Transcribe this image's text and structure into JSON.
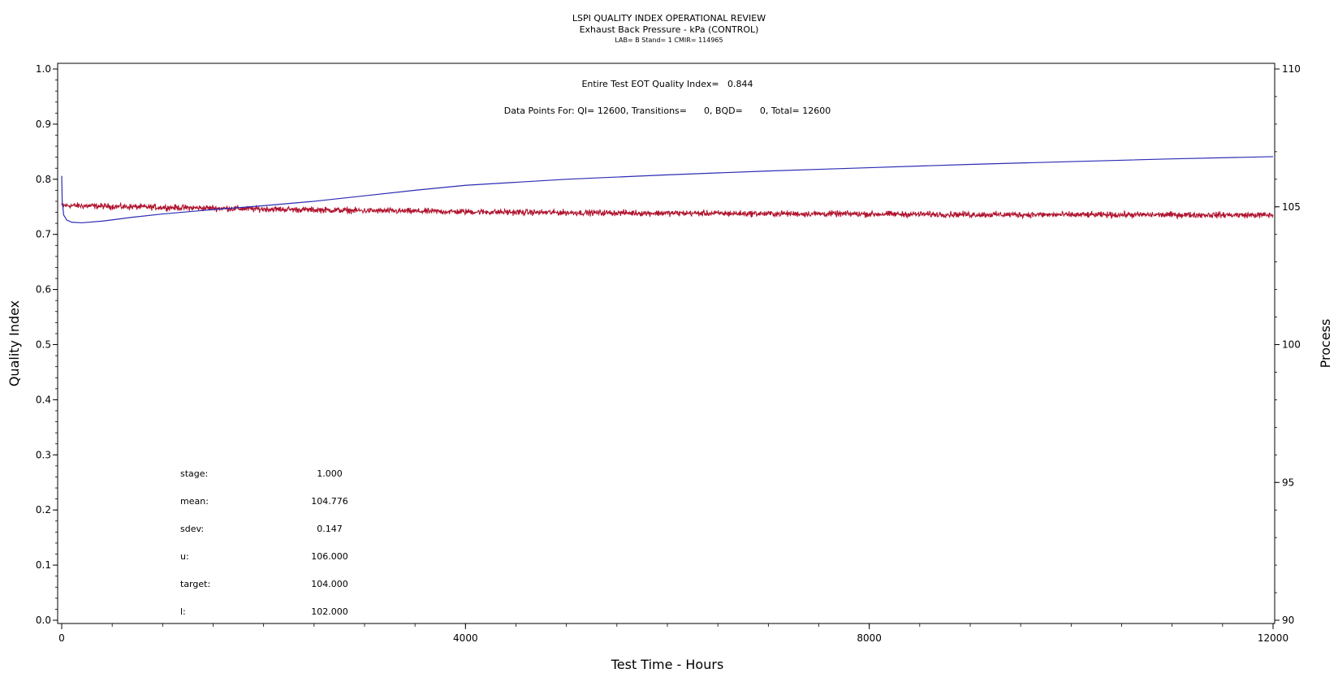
{
  "colors": {
    "quality_index_line": "#2b2bb5",
    "process_line": "#b0142f",
    "axis": "#000000"
  },
  "chart_data": {
    "type": "line",
    "title": "LSPI QUALITY INDEX OPERATIONAL REVIEW",
    "subtitle": "Exhaust Back Pressure - kPa (CONTROL)",
    "subtitle2": "LAB= B Stand= 1 CMIR= 114965",
    "annotation_qi": "Entire Test EOT Quality Index=   0.844",
    "annotation_points": "Data Points For: QI= 12600, Transitions=      0, BQD=      0, Total= 12600",
    "xlabel": "Test Time - Hours",
    "ylabel_left": "Quality Index",
    "ylabel_right": "Process",
    "xlim": [
      0,
      12000
    ],
    "ylim_left": [
      0.0,
      1.0
    ],
    "ylim_right": [
      90,
      110
    ],
    "x_ticks": [
      "0",
      "4000",
      "8000",
      "12000"
    ],
    "y_left_ticks": [
      "0.0",
      "0.1",
      "0.2",
      "0.3",
      "0.4",
      "0.5",
      "0.6",
      "0.7",
      "0.8",
      "0.9",
      "1.0"
    ],
    "y_right_ticks": [
      "90",
      "95",
      "100",
      "105",
      "110"
    ],
    "grid": false,
    "stats": [
      {
        "label": "stage:",
        "value": "1.000"
      },
      {
        "label": "mean:",
        "value": "104.776"
      },
      {
        "label": "sdev:",
        "value": "0.147"
      },
      {
        "label": "u:",
        "value": "106.000"
      },
      {
        "label": "target:",
        "value": "104.000"
      },
      {
        "label": "l:",
        "value": "102.000"
      }
    ],
    "series": [
      {
        "axis": "left",
        "x": [
          0,
          5,
          20,
          50,
          100,
          200,
          400,
          700,
          1000,
          1500,
          2000,
          2500,
          3000,
          3500,
          4000,
          5000,
          6000,
          7000,
          8000,
          9000,
          10000,
          11000,
          12000
        ],
        "values": [
          0.806,
          0.76,
          0.735,
          0.726,
          0.722,
          0.721,
          0.724,
          0.731,
          0.737,
          0.745,
          0.752,
          0.76,
          0.77,
          0.78,
          0.789,
          0.8,
          0.808,
          0.815,
          0.821,
          0.827,
          0.832,
          0.837,
          0.841
        ]
      },
      {
        "axis": "right",
        "x": [
          0,
          1000,
          2000,
          3000,
          4000,
          5000,
          6000,
          7000,
          8000,
          9000,
          10000,
          11000,
          12000
        ],
        "values": [
          105.05,
          104.98,
          104.92,
          104.86,
          104.82,
          104.79,
          104.77,
          104.75,
          104.74,
          104.72,
          104.71,
          104.71,
          104.7
        ],
        "noise_sd": 0.1
      }
    ]
  }
}
